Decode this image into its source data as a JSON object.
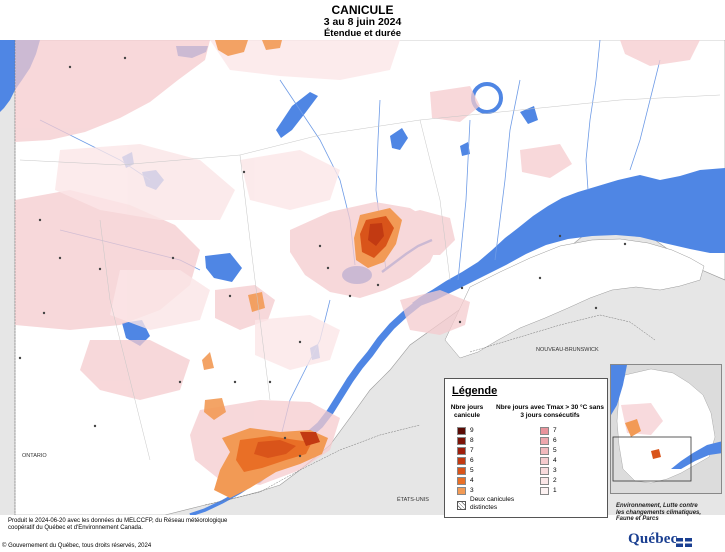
{
  "header": {
    "title": "CANICULE",
    "dates": "3 au 8 juin 2024",
    "subtitle": "Étendue et durée"
  },
  "regions": [
    "ONTARIO",
    "NOUVEAU-BRUNSWICK",
    "ÉTATS-UNIS"
  ],
  "legend": {
    "title": "Légende",
    "col1_header": "Nbre jours canicule",
    "col2_header": "Nbre jours avec Tmax > 30 °C sans 3 jours consécutifs",
    "col1": [
      {
        "value": "9",
        "color": "#5a0b05"
      },
      {
        "value": "8",
        "color": "#7c1408"
      },
      {
        "value": "7",
        "color": "#9e1f0d"
      },
      {
        "value": "6",
        "color": "#c23a12"
      },
      {
        "value": "5",
        "color": "#d9541a"
      },
      {
        "value": "4",
        "color": "#e96f26"
      },
      {
        "value": "3",
        "color": "#f29a55"
      }
    ],
    "col2": [
      {
        "value": "7",
        "color": "#e8949c"
      },
      {
        "value": "6",
        "color": "#eda7ad"
      },
      {
        "value": "5",
        "color": "#f1b9bd"
      },
      {
        "value": "4",
        "color": "#f5cbce"
      },
      {
        "value": "3",
        "color": "#f8dadc"
      },
      {
        "value": "2",
        "color": "#fbe6e7"
      },
      {
        "value": "1",
        "color": "#fdf2f2"
      }
    ],
    "two_heatwaves": "Deux canicules distinctes"
  },
  "footer": {
    "credit": "Produit le 2024-06-20 avec les données du MELCCFP, du Réseau météorologique coopératif du Québec et d'Environnement Canada.",
    "copyright": "© Gouvernement du Québec, tous droits réservés, 2024",
    "ministry": "Environnement, Lutte contre les changements climatiques, Faune et Parcs",
    "brand": "Québec"
  },
  "colors": {
    "water": "#4f86e4",
    "land_bg": "#ffffff",
    "outside_land": "#e6e6e6"
  }
}
